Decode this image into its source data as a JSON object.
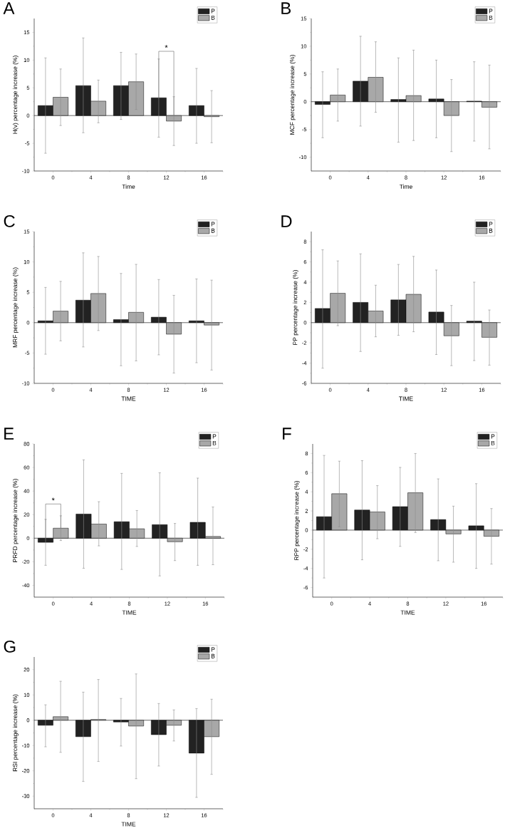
{
  "chart_data": [
    {
      "type": "bar",
      "title": "A",
      "xlabel": "Time",
      "ylabel": "H(v) percentage increase (%)",
      "categories": [
        "0",
        "4",
        "8",
        "12",
        "16"
      ],
      "ylim": [
        -10,
        17.5
      ],
      "yticks": [
        -10,
        -5,
        0,
        5,
        10,
        15
      ],
      "legend": "top right",
      "series": [
        {
          "name": "P",
          "color": "#222222",
          "values": [
            1.8,
            5.4,
            5.4,
            3.2,
            1.8
          ],
          "errors": [
            [
              -6.8,
              10.4
            ],
            [
              -3.1,
              14.0
            ],
            [
              -0.7,
              11.4
            ],
            [
              -3.9,
              10.2
            ],
            [
              -5.0,
              8.5
            ]
          ]
        },
        {
          "name": "B",
          "color": "#a8a8a8",
          "values": [
            3.3,
            2.6,
            6.1,
            -1.0,
            -0.2
          ],
          "errors": [
            [
              -1.8,
              8.4
            ],
            [
              -1.3,
              6.4
            ],
            [
              1.1,
              11.1
            ],
            [
              -5.4,
              3.4
            ],
            [
              -4.9,
              4.5
            ]
          ]
        }
      ],
      "annotations": [
        "*"
      ]
    },
    {
      "type": "bar",
      "title": "B",
      "xlabel": "Time",
      "ylabel": "MCF percentage increase (%)",
      "categories": [
        "0",
        "4",
        "8",
        "12",
        "16"
      ],
      "ylim": [
        -12.5,
        15
      ],
      "yticks": [
        -10,
        -5,
        0,
        5,
        10,
        15
      ],
      "legend": "top right",
      "series": [
        {
          "name": "P",
          "color": "#222222",
          "values": [
            -0.5,
            3.7,
            0.4,
            0.5,
            0.1
          ],
          "errors": [
            [
              -6.5,
              5.4
            ],
            [
              -4.4,
              11.8
            ],
            [
              -7.3,
              7.9
            ],
            [
              -6.5,
              7.5
            ],
            [
              -7.1,
              7.2
            ]
          ]
        },
        {
          "name": "B",
          "color": "#a8a8a8",
          "values": [
            1.2,
            4.4,
            1.1,
            -2.5,
            -1.0
          ],
          "errors": [
            [
              -3.5,
              5.9
            ],
            [
              -1.9,
              10.8
            ],
            [
              -7.0,
              9.3
            ],
            [
              -9.0,
              4.0
            ],
            [
              -8.5,
              6.6
            ]
          ]
        }
      ]
    },
    {
      "type": "bar",
      "title": "C",
      "xlabel": "TIME",
      "ylabel": "MRF percentage increase (%)",
      "categories": [
        "0",
        "4",
        "8",
        "12",
        "16"
      ],
      "ylim": [
        -10,
        15
      ],
      "yticks": [
        -10,
        -5,
        0,
        5,
        10,
        15
      ],
      "legend": "top right",
      "series": [
        {
          "name": "P",
          "color": "#222222",
          "values": [
            0.3,
            3.7,
            0.5,
            0.9,
            0.3
          ],
          "errors": [
            [
              -5.2,
              5.8
            ],
            [
              -4.0,
              11.5
            ],
            [
              -7.1,
              8.1
            ],
            [
              -5.3,
              7.1
            ],
            [
              -6.6,
              7.2
            ]
          ]
        },
        {
          "name": "B",
          "color": "#a8a8a8",
          "values": [
            1.9,
            4.8,
            1.7,
            -1.9,
            -0.4
          ],
          "errors": [
            [
              -3.0,
              6.8
            ],
            [
              -1.3,
              10.9
            ],
            [
              -6.3,
              9.6
            ],
            [
              -8.3,
              4.5
            ],
            [
              -7.8,
              7.0
            ]
          ]
        }
      ]
    },
    {
      "type": "bar",
      "title": "D",
      "xlabel": "TIME",
      "ylabel": "PP percentage increase (%)",
      "categories": [
        "0",
        "4",
        "8",
        "12",
        "16"
      ],
      "ylim": [
        -6,
        9
      ],
      "yticks": [
        -6,
        -4,
        -2,
        0,
        2,
        4,
        6,
        8
      ],
      "legend": "top right",
      "series": [
        {
          "name": "P",
          "color": "#222222",
          "values": [
            1.4,
            2.0,
            2.25,
            1.05,
            0.15
          ],
          "errors": [
            [
              -4.5,
              7.2
            ],
            [
              -2.85,
              6.8
            ],
            [
              -1.25,
              5.75
            ],
            [
              -3.15,
              5.2
            ],
            [
              -3.75,
              4.0
            ]
          ]
        },
        {
          "name": "B",
          "color": "#a8a8a8",
          "values": [
            2.9,
            1.15,
            2.8,
            -1.3,
            -1.45
          ],
          "errors": [
            [
              -0.3,
              6.1
            ],
            [
              -1.4,
              3.7
            ],
            [
              -0.9,
              6.55
            ],
            [
              -4.25,
              1.7
            ],
            [
              -4.2,
              1.25
            ]
          ]
        }
      ]
    },
    {
      "type": "bar",
      "title": "E",
      "xlabel": "TIME",
      "ylabel": "PRFD percentage increase (%)",
      "categories": [
        "0",
        "4",
        "8",
        "12",
        "16"
      ],
      "ylim": [
        -50,
        80
      ],
      "yticks": [
        -40,
        -20,
        0,
        20,
        40,
        60,
        80
      ],
      "legend": "top right",
      "series": [
        {
          "name": "P",
          "color": "#222222",
          "values": [
            -3.5,
            20.5,
            14,
            11.5,
            13.5
          ],
          "errors": [
            [
              -23,
              16
            ],
            [
              -25.5,
              66.5
            ],
            [
              -26.5,
              55
            ],
            [
              -32,
              55.5
            ],
            [
              -23,
              51
            ]
          ]
        },
        {
          "name": "B",
          "color": "#a8a8a8",
          "values": [
            8.5,
            12,
            8,
            -3,
            1.5
          ],
          "errors": [
            [
              -2,
              19
            ],
            [
              -6.5,
              31
            ],
            [
              -7,
              23.5
            ],
            [
              -19,
              12.5
            ],
            [
              -22.5,
              26.5
            ]
          ]
        }
      ],
      "annotations": [
        "*"
      ]
    },
    {
      "type": "bar",
      "title": "F",
      "xlabel": "TIME",
      "ylabel": "RPP percentage increase (%)",
      "categories": [
        "0",
        "4",
        "8",
        "12",
        "16"
      ],
      "ylim": [
        -7,
        9
      ],
      "yticks": [
        -6,
        -4,
        -2,
        0,
        2,
        4,
        6,
        8
      ],
      "legend": "top right",
      "series": [
        {
          "name": "P",
          "color": "#222222",
          "values": [
            1.4,
            2.1,
            2.45,
            1.1,
            0.45
          ],
          "errors": [
            [
              -5.0,
              7.8
            ],
            [
              -3.1,
              7.25
            ],
            [
              -1.7,
              6.55
            ],
            [
              -3.2,
              5.35
            ],
            [
              -4.0,
              4.85
            ]
          ]
        },
        {
          "name": "B",
          "color": "#a8a8a8",
          "values": [
            3.8,
            1.9,
            3.9,
            -0.4,
            -0.65
          ],
          "errors": [
            [
              0.35,
              7.2
            ],
            [
              -0.9,
              4.65
            ],
            [
              -0.25,
              8.0
            ],
            [
              -3.35,
              2.5
            ],
            [
              -3.55,
              2.25
            ]
          ]
        }
      ]
    },
    {
      "type": "bar",
      "title": "G",
      "xlabel": "TIME",
      "ylabel": "RSI percentage increase (%)",
      "categories": [
        "0",
        "4",
        "8",
        "12",
        "16"
      ],
      "ylim": [
        -35,
        25
      ],
      "yticks": [
        -30,
        -20,
        -10,
        0,
        10,
        20
      ],
      "legend": "top right",
      "series": [
        {
          "name": "P",
          "color": "#222222",
          "values": [
            -2.0,
            -6.5,
            -0.7,
            -5.7,
            -13.0
          ],
          "errors": [
            [
              -10.5,
              6.1
            ],
            [
              -24.2,
              11.1
            ],
            [
              -10.2,
              8.6
            ],
            [
              -18.1,
              6.6
            ],
            [
              -30.5,
              4.6
            ]
          ]
        },
        {
          "name": "B",
          "color": "#a8a8a8",
          "values": [
            1.4,
            0.3,
            -2.3,
            -2.0,
            -6.5
          ],
          "errors": [
            [
              -12.7,
              15.4
            ],
            [
              -16.3,
              16.1
            ],
            [
              -23.1,
              18.3
            ],
            [
              -8.2,
              4.1
            ],
            [
              -21.4,
              8.3
            ]
          ]
        }
      ]
    }
  ]
}
